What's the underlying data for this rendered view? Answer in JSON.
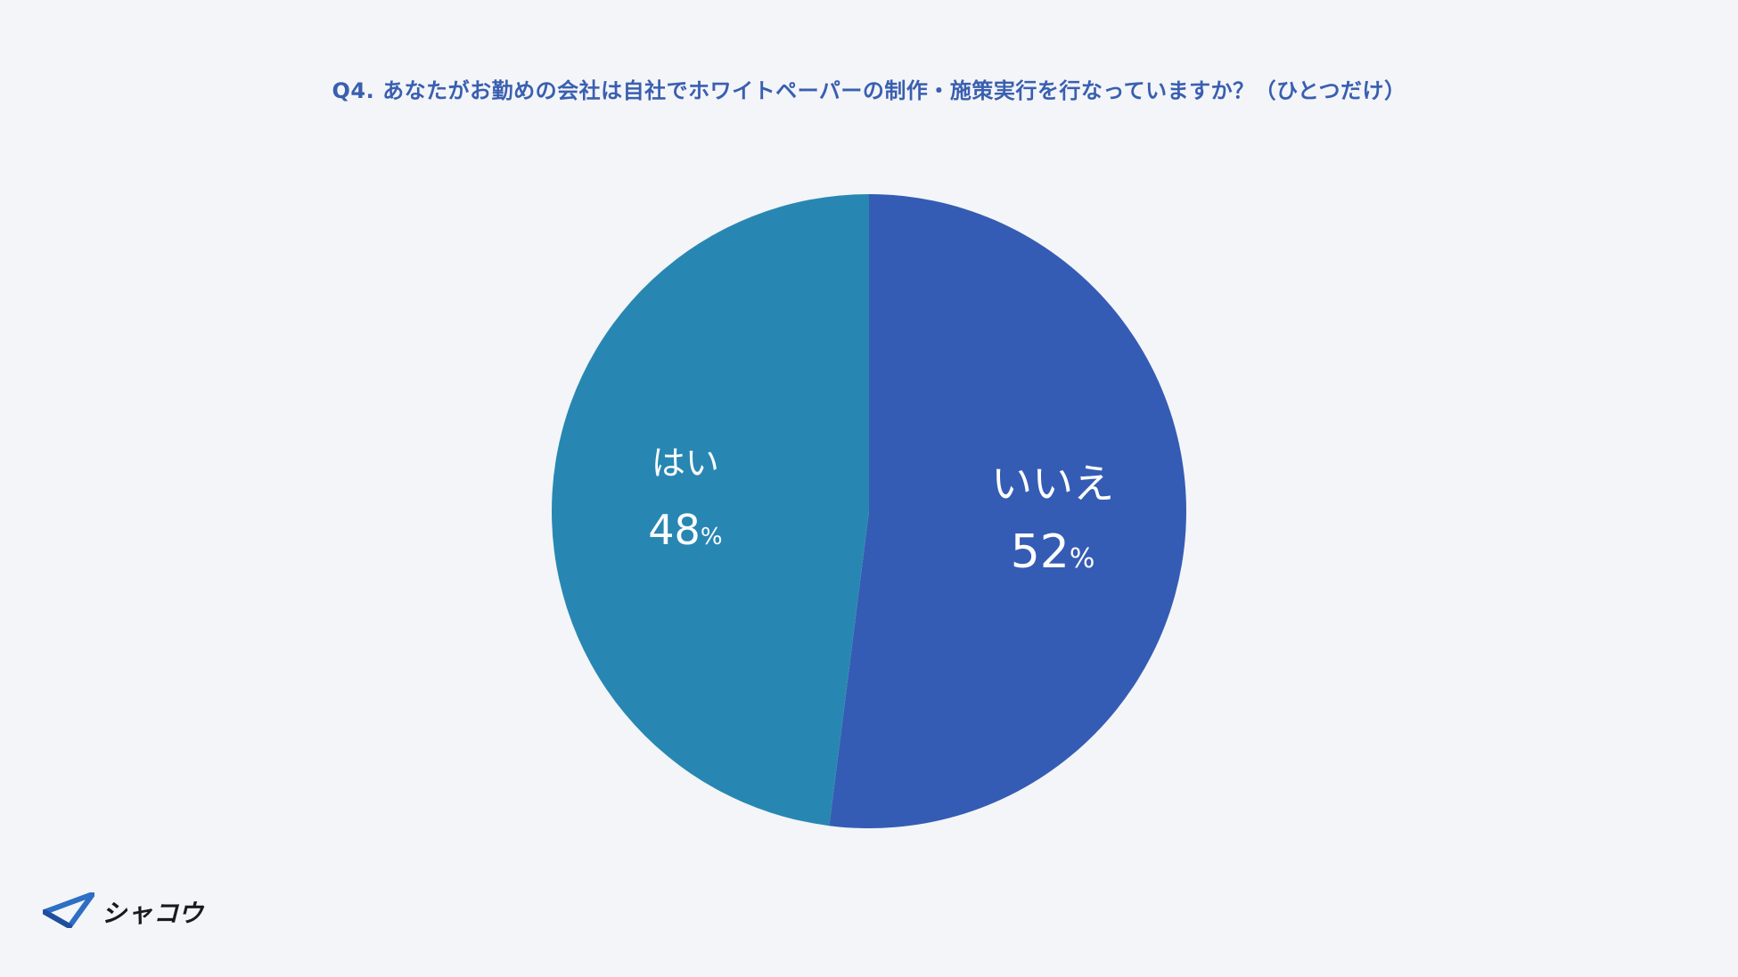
{
  "chart_data": {
    "type": "pie",
    "title": "Q4. あなたがお勤めの会社は自社でホワイトペーパーの制作・施策実行を行なっていますか？（ひとつだけ）",
    "slices": [
      {
        "label": "いいえ",
        "value": 52,
        "display": "52",
        "unit": "%",
        "color": "#355cb4"
      },
      {
        "label": "はい",
        "value": 48,
        "display": "48",
        "unit": "%",
        "color": "#2887b2"
      }
    ],
    "start": "12 o'clock",
    "direction": "clockwise"
  },
  "brand": {
    "logo_text": "シャコウ",
    "logo_icon": "paper-plane-icon",
    "colors": {
      "background": "#f3f5f8",
      "title": "#3a5fb0"
    }
  }
}
